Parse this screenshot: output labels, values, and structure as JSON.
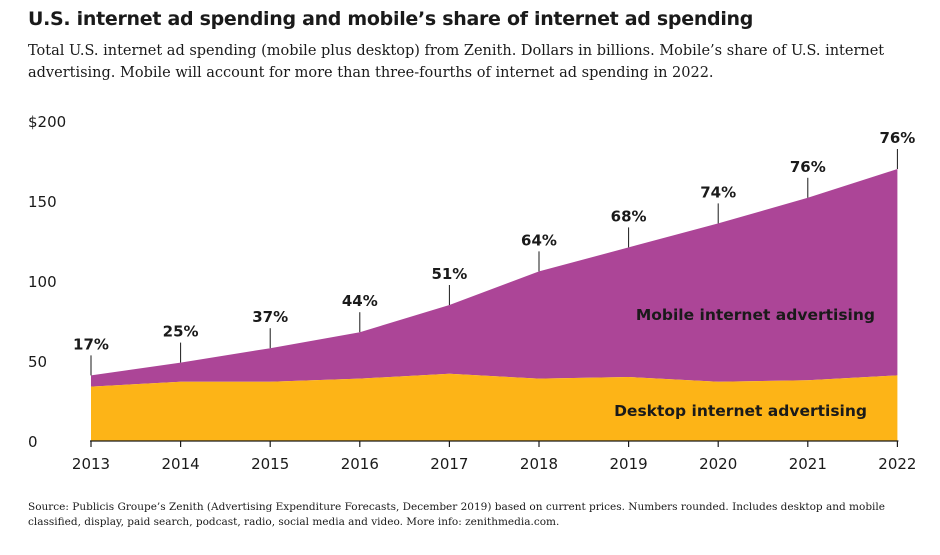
{
  "title": "U.S. internet ad spending and mobile’s share of internet ad spending",
  "subtitle": "Total U.S. internet ad spending (mobile plus desktop) from Zenith. Dollars in billions. Mobile’s share of U.S. internet advertising. Mobile will account for more than three-fourths of internet ad spending in 2022.",
  "source": "Source: Publicis Groupe’s Zenith (Advertising Expenditure Forecasts, December 2019) based on current prices. Numbers rounded. Includes desktop and mobile classified, display, paid search, podcast, radio, social media and video. More info: zenithmedia.com.",
  "chart_data": {
    "type": "area",
    "stacked": true,
    "x": [
      "2013",
      "2014",
      "2015",
      "2016",
      "2017",
      "2018",
      "2019",
      "2020",
      "2021",
      "2022"
    ],
    "ylim": [
      0,
      200
    ],
    "yticks": [
      0,
      50,
      100,
      150,
      200
    ],
    "ytick_labels": [
      "0",
      "50",
      "100",
      "150",
      "$200"
    ],
    "series": [
      {
        "name": "Desktop internet advertising",
        "color": "#FDB417",
        "values": [
          34,
          37,
          37,
          39,
          42,
          39,
          40,
          37,
          38,
          41
        ]
      },
      {
        "name": "Mobile internet advertising",
        "color": "#AC4597",
        "values": [
          7,
          12,
          21,
          29,
          43,
          67,
          81,
          99,
          114,
          129
        ]
      }
    ],
    "totals": [
      41,
      49,
      58,
      68,
      85,
      106,
      121,
      136,
      152,
      170
    ],
    "mobile_share_labels": [
      "17%",
      "25%",
      "37%",
      "44%",
      "51%",
      "64%",
      "68%",
      "74%",
      "76%",
      "76%"
    ]
  }
}
